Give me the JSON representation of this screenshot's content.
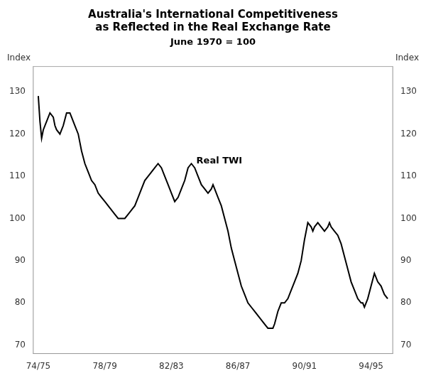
{
  "chart_data": {
    "type": "line",
    "title": [
      "Australia's International Competitiveness",
      "as Reflected in the Real Exchange Rate"
    ],
    "subtitle": "June 1970 = 100",
    "ylabel": "Index",
    "y2label": "Index",
    "annotations": [
      {
        "text": "Real TWI",
        "x": 9.5,
        "y": 112.5
      }
    ],
    "color": "#000000",
    "grid": false,
    "xlim": [
      -0.3,
      21.3
    ],
    "xticks": [
      {
        "value": 0,
        "label": "74/75"
      },
      {
        "value": 4,
        "label": "78/79"
      },
      {
        "value": 8,
        "label": "82/83"
      },
      {
        "value": 12,
        "label": "86/87"
      },
      {
        "value": 16,
        "label": "90/91"
      },
      {
        "value": 20,
        "label": "94/95"
      }
    ],
    "ylim": [
      68,
      136
    ],
    "yticks": [
      70,
      80,
      90,
      100,
      110,
      120,
      130
    ],
    "y2lim": [
      68,
      136
    ],
    "y2ticks": [
      70,
      80,
      90,
      100,
      110,
      120,
      130
    ],
    "x": [
      0.0,
      0.1,
      0.2,
      0.3,
      0.5,
      0.7,
      0.9,
      1.0,
      1.1,
      1.3,
      1.5,
      1.7,
      1.9,
      2.0,
      2.2,
      2.4,
      2.6,
      2.8,
      3.0,
      3.2,
      3.4,
      3.6,
      3.8,
      4.0,
      4.2,
      4.4,
      4.6,
      4.8,
      5.0,
      5.2,
      5.4,
      5.6,
      5.8,
      6.0,
      6.2,
      6.4,
      6.6,
      6.8,
      7.0,
      7.2,
      7.4,
      7.6,
      7.8,
      8.0,
      8.2,
      8.4,
      8.6,
      8.8,
      9.0,
      9.2,
      9.4,
      9.6,
      9.8,
      10.0,
      10.2,
      10.4,
      10.5,
      10.6,
      10.8,
      11.0,
      11.2,
      11.4,
      11.6,
      11.8,
      12.0,
      12.2,
      12.4,
      12.6,
      12.8,
      13.0,
      13.2,
      13.4,
      13.6,
      13.8,
      14.0,
      14.1,
      14.2,
      14.4,
      14.6,
      14.8,
      15.0,
      15.2,
      15.4,
      15.6,
      15.8,
      16.0,
      16.2,
      16.4,
      16.5,
      16.6,
      16.8,
      17.0,
      17.2,
      17.4,
      17.5,
      17.6,
      17.8,
      18.0,
      18.2,
      18.4,
      18.6,
      18.8,
      19.0,
      19.2,
      19.4,
      19.5,
      19.6,
      19.8,
      20.0,
      20.2,
      20.4,
      20.6,
      20.8,
      21.0
    ],
    "values": [
      129,
      123,
      119,
      121,
      123,
      125,
      124,
      122,
      121,
      120,
      122,
      125,
      125,
      124,
      122,
      120,
      116,
      113,
      111,
      109,
      108,
      106,
      105,
      104,
      103,
      102,
      101,
      100,
      100,
      100,
      101,
      102,
      103,
      105,
      107,
      109,
      110,
      111,
      112,
      113,
      112,
      110,
      108,
      106,
      104,
      105,
      107,
      109,
      112,
      113,
      112,
      110,
      108,
      107,
      106,
      107,
      108,
      107,
      105,
      103,
      100,
      97,
      93,
      90,
      87,
      84,
      82,
      80,
      79,
      78,
      77,
      76,
      75,
      74,
      74,
      74,
      75,
      78,
      80,
      80,
      81,
      83,
      85,
      87,
      90,
      95,
      99,
      98,
      97,
      98,
      99,
      98,
      97,
      98,
      99,
      98,
      97,
      96,
      94,
      91,
      88,
      85,
      83,
      81,
      80,
      80,
      79,
      81,
      84,
      87,
      85,
      84,
      82,
      81
    ]
  }
}
